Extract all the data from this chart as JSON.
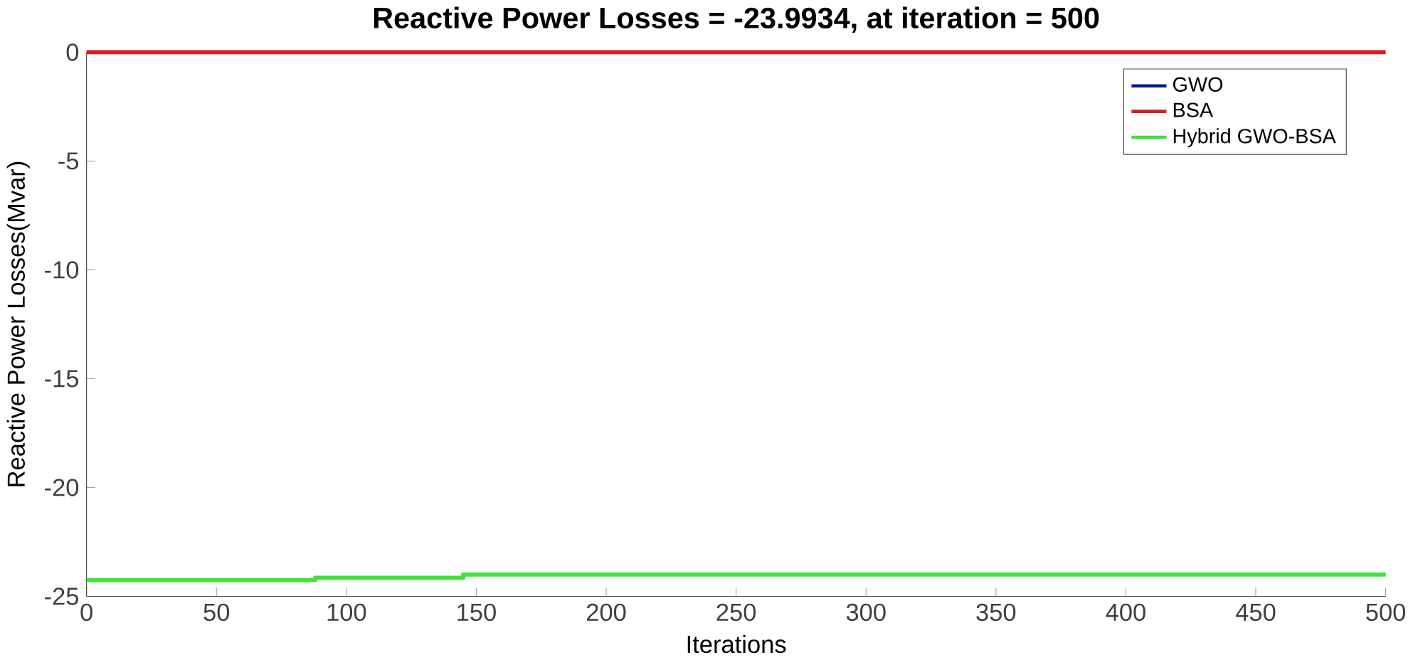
{
  "chart_data": {
    "type": "line",
    "title": "Reactive Power Losses = -23.9934, at iteration = 500",
    "xlabel": "Iterations",
    "ylabel": "Reactive Power Losses(Mvar)",
    "xlim": [
      0,
      500
    ],
    "ylim": [
      -25,
      0
    ],
    "xticks": [
      0,
      50,
      100,
      150,
      200,
      250,
      300,
      350,
      400,
      450,
      500
    ],
    "yticks": [
      -25,
      -20,
      -15,
      -10,
      -5,
      0
    ],
    "legend": "top right",
    "grid": false,
    "series": [
      {
        "name": "GWO",
        "color": "#0b1a8c",
        "values": [
          null,
          null
        ]
      },
      {
        "name": "BSA",
        "color": "#d81c24",
        "x": [
          0,
          500
        ],
        "values": [
          0,
          0
        ]
      },
      {
        "name": "Hybrid GWO-BSA",
        "color": "#3ee03a",
        "type": "step",
        "x": [
          0,
          88,
          145,
          500
        ],
        "values": [
          -24.25,
          -24.15,
          -24.0,
          -24.0
        ]
      }
    ]
  }
}
